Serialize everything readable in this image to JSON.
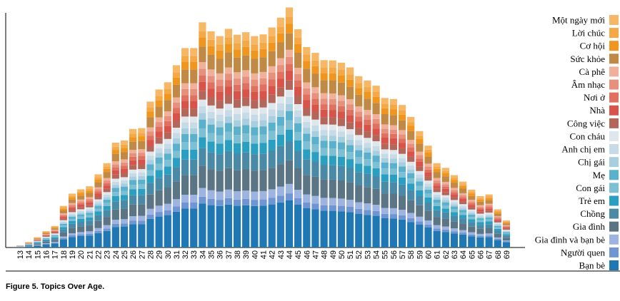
{
  "chart_data": {
    "type": "stacked_bar",
    "caption": "Figure 5. Topics Over Age.",
    "categories": [
      "13",
      "14",
      "15",
      "16",
      "17",
      "18",
      "19",
      "20",
      "21",
      "22",
      "23",
      "24",
      "25",
      "26",
      "27",
      "28",
      "29",
      "30",
      "31",
      "32",
      "33",
      "34",
      "35",
      "36",
      "37",
      "38",
      "39",
      "40",
      "41",
      "42",
      "43",
      "44",
      "45",
      "46",
      "47",
      "48",
      "49",
      "50",
      "51",
      "52",
      "53",
      "54",
      "55",
      "56",
      "57",
      "58",
      "59",
      "60",
      "61",
      "62",
      "63",
      "64",
      "65",
      "66",
      "67",
      "68",
      "69"
    ],
    "series": [
      {
        "name": "Bạn bè",
        "color": "#1f77b4",
        "values": [
          0.6,
          1.6,
          2.8,
          4.4,
          5.8,
          11.4,
          14.8,
          16,
          16.8,
          20.2,
          23.2,
          28.8,
          29.4,
          32.6,
          32.8,
          40.2,
          43.4,
          45.4,
          50.2,
          54.8,
          54.8,
          61.8,
          59.4,
          58.2,
          60.2,
          58.4,
          59.2,
          58.2,
          58.6,
          60.4,
          63.2,
          66,
          60,
          55,
          53.6,
          51.6,
          51.4,
          50.8,
          49.6,
          47,
          45.8,
          44.4,
          41,
          40.8,
          39.2,
          35.8,
          32,
          28,
          23.2,
          21.8,
          19.8,
          18.2,
          15.8,
          14.2,
          14.6,
          10.4,
          7.4
        ]
      },
      {
        "name": "Người quen",
        "color": "#6f95d2",
        "values": [
          0.1,
          0.2,
          0.4,
          0.7,
          0.9,
          1.7,
          2.2,
          2.4,
          2.5,
          3,
          3.5,
          4.3,
          4.4,
          4.9,
          4.9,
          6,
          6.5,
          6.8,
          7.5,
          8.2,
          8.2,
          9.3,
          8.9,
          8.7,
          9,
          8.8,
          8.9,
          8.7,
          8.8,
          9.1,
          9.5,
          9.9,
          9,
          8.3,
          8,
          7.7,
          7.7,
          7.6,
          7.4,
          7.1,
          6.9,
          6.7,
          6.2,
          6.1,
          5.9,
          5.4,
          4.8,
          4.2,
          3.5,
          3.3,
          3,
          2.7,
          2.4,
          2.1,
          2.2,
          1.6,
          1.1
        ]
      },
      {
        "name": "Gia đình và bạn bè",
        "color": "#9db3e0",
        "values": [
          0.1,
          0.3,
          0.6,
          0.9,
          1.2,
          2.3,
          3,
          3.2,
          3.4,
          4,
          4.6,
          5.8,
          5.9,
          6.5,
          6.6,
          8,
          8.7,
          9.1,
          10,
          11,
          11,
          12.4,
          11.9,
          11.6,
          12,
          11.7,
          11.8,
          11.6,
          11.7,
          12.1,
          12.6,
          13.2,
          12,
          11,
          10.7,
          10.3,
          10.3,
          10.2,
          9.9,
          9.4,
          9.2,
          8.9,
          8.2,
          8.2,
          7.8,
          7.2,
          6.4,
          5.6,
          4.6,
          4.4,
          4,
          3.6,
          3.2,
          2.8,
          2.9,
          2.1,
          1.5
        ]
      },
      {
        "name": "Gia đình",
        "color": "#5c7584",
        "values": [
          0.3,
          0.8,
          1.4,
          2.2,
          2.9,
          5.7,
          7.4,
          8,
          8.4,
          10.1,
          11.6,
          14.4,
          14.7,
          16.3,
          16.4,
          20.1,
          21.7,
          22.7,
          25.1,
          27.4,
          27.4,
          30.9,
          29.7,
          29.1,
          30.1,
          29.2,
          29.6,
          29.1,
          29.3,
          30.2,
          31.6,
          33,
          30,
          27.5,
          26.8,
          25.8,
          25.7,
          25.4,
          24.8,
          23.5,
          22.9,
          22.2,
          20.5,
          20.4,
          19.6,
          17.9,
          16,
          14,
          11.6,
          10.9,
          9.9,
          9.1,
          7.9,
          7.1,
          7.3,
          5.2,
          3.7
        ]
      },
      {
        "name": "Chồng",
        "color": "#4b8aa6",
        "values": [
          0.2,
          0.6,
          1.1,
          1.8,
          2.3,
          4.6,
          5.9,
          6.4,
          6.7,
          8.1,
          9.3,
          11.5,
          11.8,
          13,
          13.1,
          16.1,
          17.4,
          18.2,
          20.1,
          21.9,
          21.9,
          24.7,
          23.8,
          23.3,
          24.1,
          23.4,
          23.7,
          23.3,
          23.4,
          24.2,
          25.3,
          26.4,
          24,
          22,
          21.4,
          20.6,
          20.6,
          20.3,
          19.8,
          18.8,
          18.3,
          17.8,
          16.4,
          16.3,
          15.7,
          14.3,
          12.8,
          11.2,
          9.3,
          8.7,
          7.9,
          7.3,
          6.3,
          5.7,
          5.8,
          4.2,
          3
        ]
      },
      {
        "name": "Trẻ em",
        "color": "#2b9fc1",
        "values": [
          0.2,
          0.4,
          0.7,
          1.1,
          1.5,
          2.9,
          3.7,
          4,
          4.2,
          5.1,
          5.8,
          7.2,
          7.4,
          8.2,
          8.2,
          10.1,
          10.9,
          11.4,
          12.6,
          13.7,
          13.7,
          15.5,
          14.9,
          14.6,
          15.1,
          14.6,
          14.8,
          14.6,
          14.7,
          15.1,
          15.8,
          16.5,
          15,
          13.8,
          13.4,
          12.9,
          12.9,
          12.7,
          12.4,
          11.8,
          11.5,
          11.1,
          10.3,
          10.2,
          9.8,
          9,
          8,
          7,
          5.8,
          5.5,
          5,
          4.6,
          4,
          3.6,
          3.7,
          2.6,
          1.9
        ]
      },
      {
        "name": "Con gái",
        "color": "#7dbfd3",
        "values": [
          0.1,
          0.3,
          0.6,
          0.9,
          1.2,
          2.3,
          3,
          3.2,
          3.4,
          4,
          4.6,
          5.8,
          5.9,
          6.5,
          6.6,
          8,
          8.7,
          9.1,
          10,
          11,
          11,
          12.4,
          11.9,
          11.6,
          12,
          11.7,
          11.8,
          11.6,
          11.7,
          12.1,
          12.6,
          13.2,
          12,
          11,
          10.7,
          10.3,
          10.3,
          10.2,
          9.9,
          9.4,
          9.2,
          8.9,
          8.2,
          8.2,
          7.8,
          7.2,
          6.4,
          5.6,
          4.6,
          4.4,
          4,
          3.6,
          3.2,
          2.8,
          2.9,
          2.1,
          1.5
        ]
      },
      {
        "name": "Mẹ",
        "color": "#5bb0cb",
        "values": [
          0.1,
          0.3,
          0.6,
          0.9,
          1.2,
          2.3,
          3,
          3.2,
          3.4,
          4,
          4.6,
          5.8,
          5.9,
          6.5,
          6.6,
          8,
          8.7,
          9.1,
          10,
          11,
          11,
          12.4,
          11.9,
          11.6,
          12,
          11.7,
          11.8,
          11.6,
          11.7,
          12.1,
          12.6,
          13.2,
          12,
          11,
          10.7,
          10.3,
          10.3,
          10.2,
          9.9,
          9.4,
          9.2,
          8.9,
          8.2,
          8.2,
          7.8,
          7.2,
          6.4,
          5.6,
          4.6,
          4.4,
          4,
          3.6,
          3.2,
          2.8,
          2.9,
          2.1,
          1.5
        ]
      },
      {
        "name": "Chị gái",
        "color": "#a8cfe0",
        "values": [
          0.1,
          0.2,
          0.4,
          0.7,
          0.9,
          1.7,
          2.2,
          2.4,
          2.5,
          3,
          3.5,
          4.3,
          4.4,
          4.9,
          4.9,
          6,
          6.5,
          6.8,
          7.5,
          8.2,
          8.2,
          9.3,
          8.9,
          8.7,
          9,
          8.8,
          8.9,
          8.7,
          8.8,
          9.1,
          9.5,
          9.9,
          9,
          8.3,
          8,
          7.7,
          7.7,
          7.6,
          7.4,
          7.1,
          6.9,
          6.7,
          6.2,
          6.1,
          5.9,
          5.4,
          4.8,
          4.2,
          3.5,
          3.3,
          3,
          2.7,
          2.4,
          2.1,
          2.2,
          1.6,
          1.1
        ]
      },
      {
        "name": "Anh chị em",
        "color": "#c6dbe7",
        "values": [
          0.1,
          0.2,
          0.4,
          0.7,
          0.9,
          1.7,
          2.2,
          2.4,
          2.5,
          3,
          3.5,
          4.3,
          4.4,
          4.9,
          4.9,
          6,
          6.5,
          6.8,
          7.5,
          8.2,
          8.2,
          9.3,
          8.9,
          8.7,
          9,
          8.8,
          8.9,
          8.7,
          8.8,
          9.1,
          9.5,
          9.9,
          9,
          8.3,
          8,
          7.7,
          7.7,
          7.6,
          7.4,
          7.1,
          6.9,
          6.7,
          6.2,
          6.1,
          5.9,
          5.4,
          4.8,
          4.2,
          3.5,
          3.3,
          3,
          2.7,
          2.4,
          2.1,
          2.2,
          1.6,
          1.1
        ]
      },
      {
        "name": "Con cháu",
        "color": "#dfe6ec",
        "values": [
          0.1,
          0.2,
          0.4,
          0.7,
          0.9,
          1.7,
          2.2,
          2.4,
          2.5,
          3,
          3.5,
          4.3,
          4.4,
          4.9,
          4.9,
          6,
          6.5,
          6.8,
          7.5,
          8.2,
          8.2,
          9.3,
          8.9,
          8.7,
          9,
          8.8,
          8.9,
          8.7,
          8.8,
          9.1,
          9.5,
          9.9,
          9,
          8.3,
          8,
          7.7,
          7.7,
          7.6,
          7.4,
          7.1,
          6.9,
          6.7,
          6.2,
          6.1,
          5.9,
          5.4,
          4.8,
          4.2,
          3.5,
          3.3,
          3,
          2.7,
          2.4,
          2.1,
          2.2,
          1.6,
          1.1
        ]
      },
      {
        "name": "Công việc",
        "color": "#b3675a",
        "values": [
          0.1,
          0.3,
          0.6,
          0.9,
          1.2,
          2.3,
          3,
          3.2,
          3.4,
          4,
          4.6,
          5.8,
          5.9,
          6.5,
          6.6,
          8,
          8.7,
          9.1,
          10,
          11,
          11,
          12.4,
          11.9,
          11.6,
          12,
          11.7,
          11.8,
          11.6,
          11.7,
          12.1,
          12.6,
          13.2,
          12,
          11,
          10.7,
          10.3,
          10.3,
          10.2,
          9.9,
          9.4,
          9.2,
          8.9,
          8.2,
          8.2,
          7.8,
          7.2,
          6.4,
          5.6,
          4.6,
          4.4,
          4,
          3.6,
          3.2,
          2.8,
          2.9,
          2.1,
          1.5
        ]
      },
      {
        "name": "Nhà",
        "color": "#d8534a",
        "values": [
          0.1,
          0.3,
          0.6,
          0.9,
          1.2,
          2.3,
          3,
          3.2,
          3.4,
          4,
          4.6,
          5.8,
          5.9,
          6.5,
          6.6,
          8,
          8.7,
          9.1,
          10,
          11,
          11,
          12.4,
          11.9,
          11.6,
          12,
          11.7,
          11.8,
          11.6,
          11.7,
          12.1,
          12.6,
          13.2,
          12,
          11,
          10.7,
          10.3,
          10.3,
          10.2,
          9.9,
          9.4,
          9.2,
          8.9,
          8.2,
          8.2,
          7.8,
          7.2,
          6.4,
          5.6,
          4.6,
          4.4,
          4,
          3.6,
          3.2,
          2.8,
          2.9,
          2.1,
          1.5
        ]
      },
      {
        "name": "Nơi ở",
        "color": "#e07060",
        "values": [
          0.1,
          0.2,
          0.4,
          0.7,
          0.9,
          1.7,
          2.2,
          2.4,
          2.5,
          3,
          3.5,
          4.3,
          4.4,
          4.9,
          4.9,
          6,
          6.5,
          6.8,
          7.5,
          8.2,
          8.2,
          9.3,
          8.9,
          8.7,
          9,
          8.8,
          8.9,
          8.7,
          8.8,
          9.1,
          9.5,
          9.9,
          9,
          8.3,
          8,
          7.7,
          7.7,
          7.6,
          7.4,
          7.1,
          6.9,
          6.7,
          6.2,
          6.1,
          5.9,
          5.4,
          4.8,
          4.2,
          3.5,
          3.3,
          3,
          2.7,
          2.4,
          2.1,
          2.2,
          1.6,
          1.1
        ]
      },
      {
        "name": "Âm nhạc",
        "color": "#e8907e",
        "values": [
          0.1,
          0.2,
          0.4,
          0.7,
          0.9,
          1.7,
          2.2,
          2.4,
          2.5,
          3,
          3.5,
          4.3,
          4.4,
          4.9,
          4.9,
          6,
          6.5,
          6.8,
          7.5,
          8.2,
          8.2,
          9.3,
          8.9,
          8.7,
          9,
          8.8,
          8.9,
          8.7,
          8.8,
          9.1,
          9.5,
          9.9,
          9,
          8.3,
          8,
          7.7,
          7.7,
          7.6,
          7.4,
          7.1,
          6.9,
          6.7,
          6.2,
          6.1,
          5.9,
          5.4,
          4.8,
          4.2,
          3.5,
          3.3,
          3,
          2.7,
          2.4,
          2.1,
          2.2,
          1.6,
          1.1
        ]
      },
      {
        "name": "Cà phê",
        "color": "#f0b09a",
        "values": [
          0.1,
          0.2,
          0.4,
          0.7,
          0.9,
          1.7,
          2.2,
          2.4,
          2.5,
          3,
          3.5,
          4.3,
          4.4,
          4.9,
          4.9,
          6,
          6.5,
          6.8,
          7.5,
          8.2,
          8.2,
          9.3,
          8.9,
          8.7,
          9,
          8.8,
          8.9,
          8.7,
          8.8,
          9.1,
          9.5,
          9.9,
          9,
          8.3,
          8,
          7.7,
          7.7,
          7.6,
          7.4,
          7.1,
          6.9,
          6.7,
          6.2,
          6.1,
          5.9,
          5.4,
          4.8,
          4.2,
          3.5,
          3.3,
          3,
          2.7,
          2.4,
          2.1,
          2.2,
          1.6,
          1.1
        ]
      },
      {
        "name": "Sức khỏe",
        "color": "#c08945",
        "values": [
          0.2,
          0.6,
          1,
          1.5,
          2,
          4,
          5.2,
          5.6,
          5.9,
          7.1,
          8.1,
          10.1,
          10.3,
          11.4,
          11.5,
          14.1,
          15.2,
          15.9,
          17.6,
          19.2,
          19.2,
          21.6,
          20.8,
          20.4,
          21.1,
          20.4,
          20.7,
          20.4,
          20.5,
          21.1,
          22.1,
          23.1,
          21,
          19.3,
          18.8,
          18.1,
          18,
          17.8,
          17.4,
          16.5,
          16,
          15.5,
          14.4,
          14.3,
          13.7,
          12.5,
          11.2,
          9.8,
          8.1,
          7.6,
          6.9,
          6.4,
          5.5,
          5,
          5.1,
          3.6,
          2.6
        ]
      },
      {
        "name": "Cơ hội",
        "color": "#f0951e",
        "values": [
          0.1,
          0.3,
          0.6,
          0.9,
          1.2,
          2.3,
          3,
          3.2,
          3.4,
          4,
          4.6,
          5.8,
          5.9,
          6.5,
          6.6,
          8,
          8.7,
          9.1,
          10,
          11,
          11,
          12.4,
          11.9,
          11.6,
          12,
          11.7,
          11.8,
          11.6,
          11.7,
          12.1,
          12.6,
          13.2,
          12,
          11,
          10.7,
          10.3,
          10.3,
          10.2,
          9.9,
          9.4,
          9.2,
          8.9,
          8.2,
          8.2,
          7.8,
          7.2,
          6.4,
          5.6,
          4.6,
          4.4,
          4,
          3.6,
          3.2,
          2.8,
          2.9,
          2.1,
          1.5
        ]
      },
      {
        "name": "Lời chúc",
        "color": "#f4a846",
        "values": [
          0.1,
          0.2,
          0.4,
          0.7,
          0.9,
          1.7,
          2.2,
          2.4,
          2.5,
          3,
          3.5,
          4.3,
          4.4,
          4.9,
          4.9,
          6,
          6.5,
          6.8,
          7.5,
          8.2,
          8.2,
          9.3,
          8.9,
          8.7,
          9,
          8.8,
          8.9,
          8.7,
          8.8,
          9.1,
          9.5,
          9.9,
          9,
          8.3,
          8,
          7.7,
          7.7,
          7.6,
          7.4,
          7.1,
          6.9,
          6.7,
          6.2,
          6.1,
          5.9,
          5.4,
          4.8,
          4.2,
          3.5,
          3.3,
          3,
          2.7,
          2.4,
          2.1,
          2.2,
          1.6,
          1.1
        ]
      },
      {
        "name": "Một ngày mới",
        "color": "#f6b866",
        "values": [
          0.1,
          0.3,
          0.6,
          0.9,
          1.2,
          2.3,
          3,
          3.2,
          3.4,
          4,
          4.6,
          5.8,
          5.9,
          6.5,
          6.6,
          8,
          8.7,
          9.1,
          10,
          11,
          11,
          12.4,
          11.9,
          11.6,
          12,
          11.7,
          11.8,
          11.6,
          11.7,
          12.1,
          12.6,
          13.2,
          12,
          11,
          10.7,
          10.3,
          10.3,
          10.2,
          9.9,
          9.4,
          9.2,
          8.9,
          8.2,
          8.2,
          7.8,
          7.2,
          6.4,
          5.6,
          4.6,
          4.4,
          4,
          3.6,
          3.2,
          2.8,
          2.9,
          2.1,
          1.5
        ]
      }
    ]
  }
}
